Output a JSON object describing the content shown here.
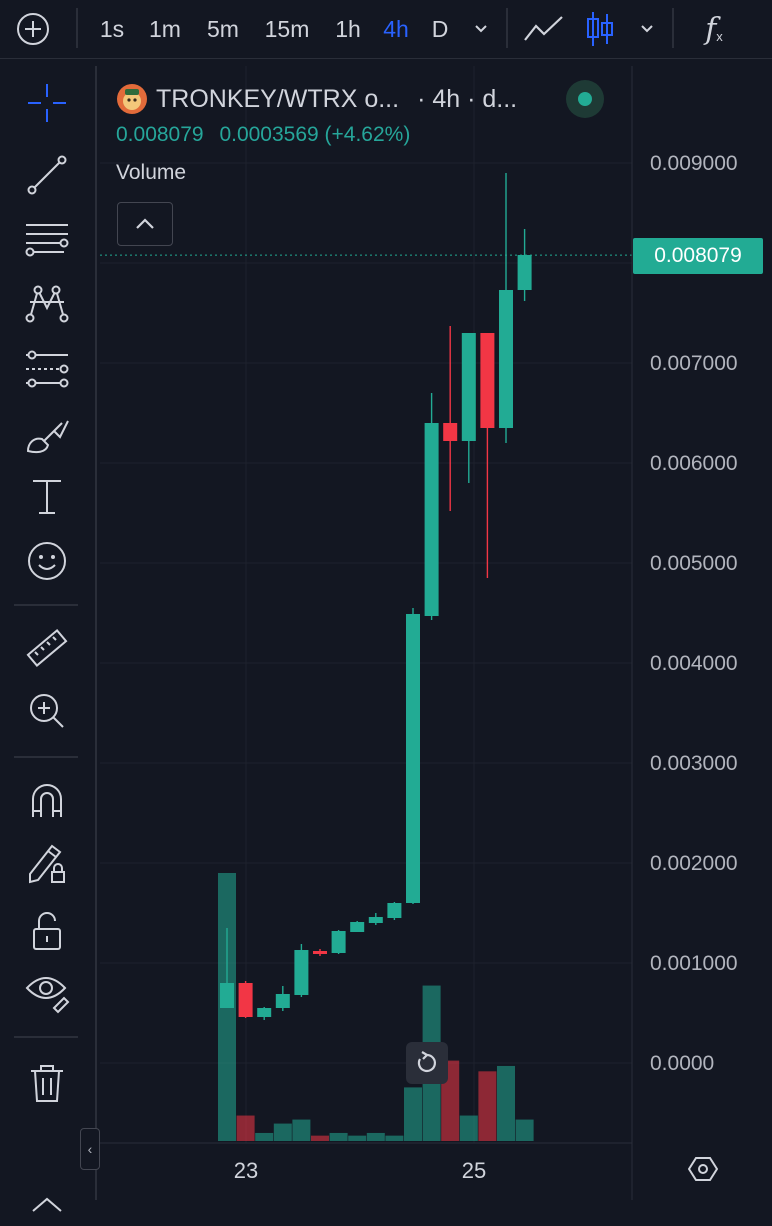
{
  "toolbar": {
    "timeframes": [
      "1s",
      "1m",
      "5m",
      "15m",
      "1h",
      "4h",
      "D"
    ],
    "active_timeframe": "4h",
    "indicator_label": "f"
  },
  "legend": {
    "symbol": "TRONKEY/WTRX o...",
    "interval": "· 4h · d...",
    "price": "0.008079",
    "change": "0.0003569 (+4.62%)",
    "volume_label": "Volume"
  },
  "price_axis": {
    "labels": [
      "0.009000",
      "0.007000",
      "0.006000",
      "0.005000",
      "0.004000",
      "0.003000",
      "0.002000",
      "0.001000",
      "0.0000"
    ],
    "last_price": "0.008079"
  },
  "time_axis": {
    "labels": [
      "23",
      "25"
    ]
  },
  "colors": {
    "up": "#22ab94",
    "down": "#f23645",
    "background": "#131722",
    "accent": "#2962ff"
  },
  "chart_data": {
    "type": "candlestick",
    "interval": "4h",
    "x_labels": [
      "23",
      "25"
    ],
    "ylim": [
      0,
      0.009
    ],
    "candles": [
      {
        "o": 0.00055,
        "h": 0.00135,
        "l": 0.00055,
        "c": 0.0008
      },
      {
        "o": 0.0008,
        "h": 0.00082,
        "l": 0.00045,
        "c": 0.00046
      },
      {
        "o": 0.00046,
        "h": 0.00056,
        "l": 0.00043,
        "c": 0.00055
      },
      {
        "o": 0.00055,
        "h": 0.00077,
        "l": 0.00052,
        "c": 0.00069
      },
      {
        "o": 0.00068,
        "h": 0.00119,
        "l": 0.00066,
        "c": 0.00113
      },
      {
        "o": 0.00112,
        "h": 0.00114,
        "l": 0.00107,
        "c": 0.00109
      },
      {
        "o": 0.0011,
        "h": 0.00133,
        "l": 0.00109,
        "c": 0.00132
      },
      {
        "o": 0.00131,
        "h": 0.00142,
        "l": 0.00131,
        "c": 0.00141
      },
      {
        "o": 0.0014,
        "h": 0.0015,
        "l": 0.00138,
        "c": 0.00146
      },
      {
        "o": 0.00145,
        "h": 0.00161,
        "l": 0.00143,
        "c": 0.0016
      },
      {
        "o": 0.0016,
        "h": 0.00455,
        "l": 0.00159,
        "c": 0.00449
      },
      {
        "o": 0.00447,
        "h": 0.0067,
        "l": 0.00443,
        "c": 0.0064
      },
      {
        "o": 0.0064,
        "h": 0.00737,
        "l": 0.00552,
        "c": 0.00622
      },
      {
        "o": 0.00622,
        "h": 0.0073,
        "l": 0.0058,
        "c": 0.0073
      },
      {
        "o": 0.0073,
        "h": 0.0073,
        "l": 0.00485,
        "c": 0.00635
      },
      {
        "o": 0.00635,
        "h": 0.0089,
        "l": 0.0062,
        "c": 0.00773
      },
      {
        "o": 0.00773,
        "h": 0.00834,
        "l": 0.00762,
        "c": 0.00808
      }
    ],
    "volume": [
      {
        "v": 1.0,
        "up": true
      },
      {
        "v": 0.095,
        "up": false
      },
      {
        "v": 0.03,
        "up": true
      },
      {
        "v": 0.065,
        "up": true
      },
      {
        "v": 0.08,
        "up": true
      },
      {
        "v": 0.02,
        "up": false
      },
      {
        "v": 0.03,
        "up": true
      },
      {
        "v": 0.02,
        "up": true
      },
      {
        "v": 0.03,
        "up": true
      },
      {
        "v": 0.02,
        "up": true
      },
      {
        "v": 0.2,
        "up": true
      },
      {
        "v": 0.58,
        "up": true
      },
      {
        "v": 0.3,
        "up": false
      },
      {
        "v": 0.095,
        "up": true
      },
      {
        "v": 0.26,
        "up": false
      },
      {
        "v": 0.28,
        "up": true
      },
      {
        "v": 0.08,
        "up": true
      }
    ]
  }
}
